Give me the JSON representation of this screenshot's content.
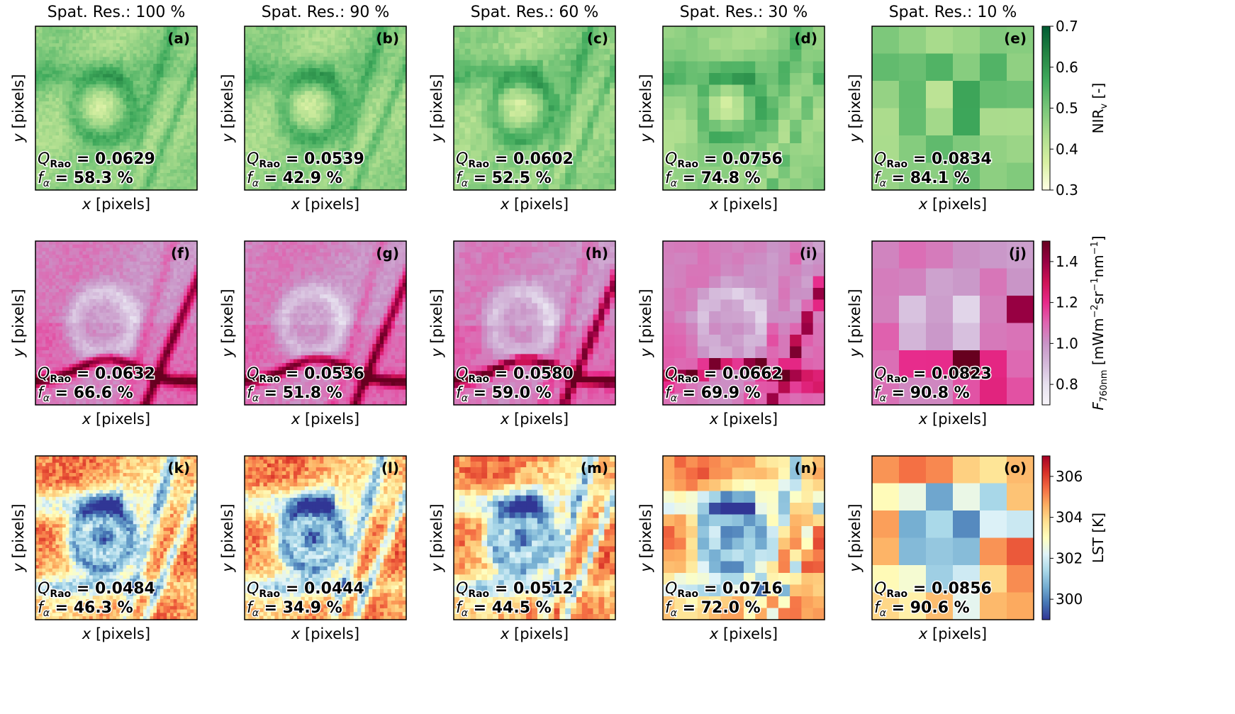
{
  "figure": {
    "column_titles": [
      "Spat. Res.: 100 %",
      "Spat. Res.: 90 %",
      "Spat. Res.: 60 %",
      "Spat. Res.: 30 %",
      "Spat. Res.: 10 %"
    ],
    "x_axis_label_var": "x",
    "x_axis_label_unit": " [pixels]",
    "y_axis_label_var": "y",
    "y_axis_label_unit": " [pixels]",
    "q_symbol": "Q",
    "q_subscript": "Rao",
    "f_symbol": "f",
    "f_subscript": "α"
  },
  "chart_data": [
    {
      "type": "heatmap",
      "row": "NIRv",
      "colorbar": {
        "label_main": "NIR",
        "label_sub": "v",
        "label_unit": " [-]",
        "ticks": [
          "0.3",
          "0.4",
          "0.5",
          "0.6",
          "0.7"
        ],
        "range": [
          0.3,
          0.7
        ],
        "colormap": [
          "#ffffe5",
          "#d9f0a3",
          "#addd8e",
          "#78c679",
          "#41ab5d",
          "#238443",
          "#005a32"
        ]
      },
      "panels": [
        {
          "label": "(a)",
          "spatial_resolution_percent": 100,
          "grid_cells": 48,
          "q_rao": "0.0629",
          "f_alpha": "58.3 %"
        },
        {
          "label": "(b)",
          "spatial_resolution_percent": 90,
          "grid_cells": 43,
          "q_rao": "0.0539",
          "f_alpha": "42.9 %"
        },
        {
          "label": "(c)",
          "spatial_resolution_percent": 60,
          "grid_cells": 29,
          "q_rao": "0.0602",
          "f_alpha": "52.5 %"
        },
        {
          "label": "(d)",
          "spatial_resolution_percent": 30,
          "grid_cells": 14,
          "q_rao": "0.0756",
          "f_alpha": "74.8 %"
        },
        {
          "label": "(e)",
          "spatial_resolution_percent": 10,
          "grid_cells": 6,
          "q_rao": "0.0834",
          "f_alpha": "84.1 %"
        }
      ]
    },
    {
      "type": "heatmap",
      "row": "F760nm",
      "colorbar": {
        "label_main": "F",
        "label_sub": "760nm",
        "label_unit": " [mWm",
        "label_unit_sup1": "−2",
        "label_unit_mid": "sr",
        "label_unit_sup2": "−1",
        "label_unit_end": "nm",
        "label_unit_sup3": "−1",
        "label_unit_close": "]",
        "ticks": [
          "0.8",
          "1.0",
          "1.2",
          "1.4"
        ],
        "tick_values": [
          0.8,
          1.0,
          1.2,
          1.4
        ],
        "range": [
          0.7,
          1.5
        ],
        "colormap": [
          "#f7f4f9",
          "#e7e1ef",
          "#d4b9da",
          "#c994c7",
          "#df65b0",
          "#e7298a",
          "#ce1256",
          "#980043",
          "#67001f"
        ]
      },
      "panels": [
        {
          "label": "(f)",
          "spatial_resolution_percent": 100,
          "grid_cells": 48,
          "q_rao": "0.0632",
          "f_alpha": "66.6 %"
        },
        {
          "label": "(g)",
          "spatial_resolution_percent": 90,
          "grid_cells": 43,
          "q_rao": "0.0536",
          "f_alpha": "51.8 %"
        },
        {
          "label": "(h)",
          "spatial_resolution_percent": 60,
          "grid_cells": 29,
          "q_rao": "0.0580",
          "f_alpha": "59.0 %"
        },
        {
          "label": "(i)",
          "spatial_resolution_percent": 30,
          "grid_cells": 14,
          "q_rao": "0.0662",
          "f_alpha": "69.9 %"
        },
        {
          "label": "(j)",
          "spatial_resolution_percent": 10,
          "grid_cells": 6,
          "q_rao": "0.0823",
          "f_alpha": "90.8 %"
        }
      ]
    },
    {
      "type": "heatmap",
      "row": "LST",
      "colorbar": {
        "label_main": "LST [K]",
        "ticks": [
          "300",
          "302",
          "304",
          "306"
        ],
        "tick_values": [
          300,
          302,
          304,
          306
        ],
        "range": [
          299,
          307
        ],
        "colormap": [
          "#313695",
          "#4575b4",
          "#74add1",
          "#abd9e9",
          "#e0f3f8",
          "#ffffbf",
          "#fee090",
          "#fdae61",
          "#f46d43",
          "#d73027",
          "#a50026"
        ]
      },
      "panels": [
        {
          "label": "(k)",
          "spatial_resolution_percent": 100,
          "grid_cells": 48,
          "q_rao": "0.0484",
          "f_alpha": "46.3 %"
        },
        {
          "label": "(l)",
          "spatial_resolution_percent": 90,
          "grid_cells": 43,
          "q_rao": "0.0444",
          "f_alpha": "34.9 %"
        },
        {
          "label": "(m)",
          "spatial_resolution_percent": 60,
          "grid_cells": 29,
          "q_rao": "0.0512",
          "f_alpha": "44.5 %"
        },
        {
          "label": "(n)",
          "spatial_resolution_percent": 30,
          "grid_cells": 14,
          "q_rao": "0.0716",
          "f_alpha": "72.0 %"
        },
        {
          "label": "(o)",
          "spatial_resolution_percent": 10,
          "grid_cells": 6,
          "q_rao": "0.0856",
          "f_alpha": "90.6 %"
        }
      ]
    }
  ]
}
